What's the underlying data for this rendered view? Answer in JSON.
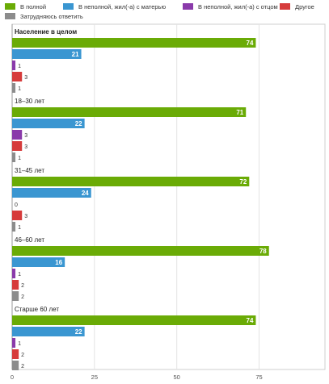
{
  "legend": {
    "items": [
      {
        "label": "В полной",
        "color": "#6aab06"
      },
      {
        "label": "В неполной, жил(-а) с матерью",
        "color": "#3a96d1"
      },
      {
        "label": "В неполной, жил(-а) с отцом",
        "color": "#8a3aaa"
      },
      {
        "label": "Другое",
        "color": "#d63b3b"
      },
      {
        "label": "Затрудняюсь ответить",
        "color": "#8c8c8c"
      }
    ]
  },
  "chart_data": {
    "type": "bar",
    "orientation": "horizontal",
    "categories": [
      "Население в целом",
      "18–30 лет",
      "31–45 лет",
      "46–60 лет",
      "Старше 60 лет"
    ],
    "series": [
      {
        "name": "В полной",
        "color": "#6aab06",
        "values": [
          74,
          71,
          72,
          78,
          74
        ]
      },
      {
        "name": "В неполной, жил(-а) с матерью",
        "color": "#3a96d1",
        "values": [
          21,
          22,
          24,
          16,
          22
        ]
      },
      {
        "name": "В неполной, жил(-а) с отцом",
        "color": "#8a3aaa",
        "values": [
          1,
          3,
          0,
          1,
          1
        ]
      },
      {
        "name": "Другое",
        "color": "#d63b3b",
        "values": [
          3,
          3,
          3,
          2,
          2
        ]
      },
      {
        "name": "Затрудняюсь ответить",
        "color": "#8c8c8c",
        "values": [
          1,
          1,
          1,
          2,
          2
        ]
      }
    ],
    "xlim": [
      0,
      95
    ],
    "xticks": [
      0,
      25,
      50,
      75
    ],
    "grid": true,
    "legend_position": "top"
  }
}
